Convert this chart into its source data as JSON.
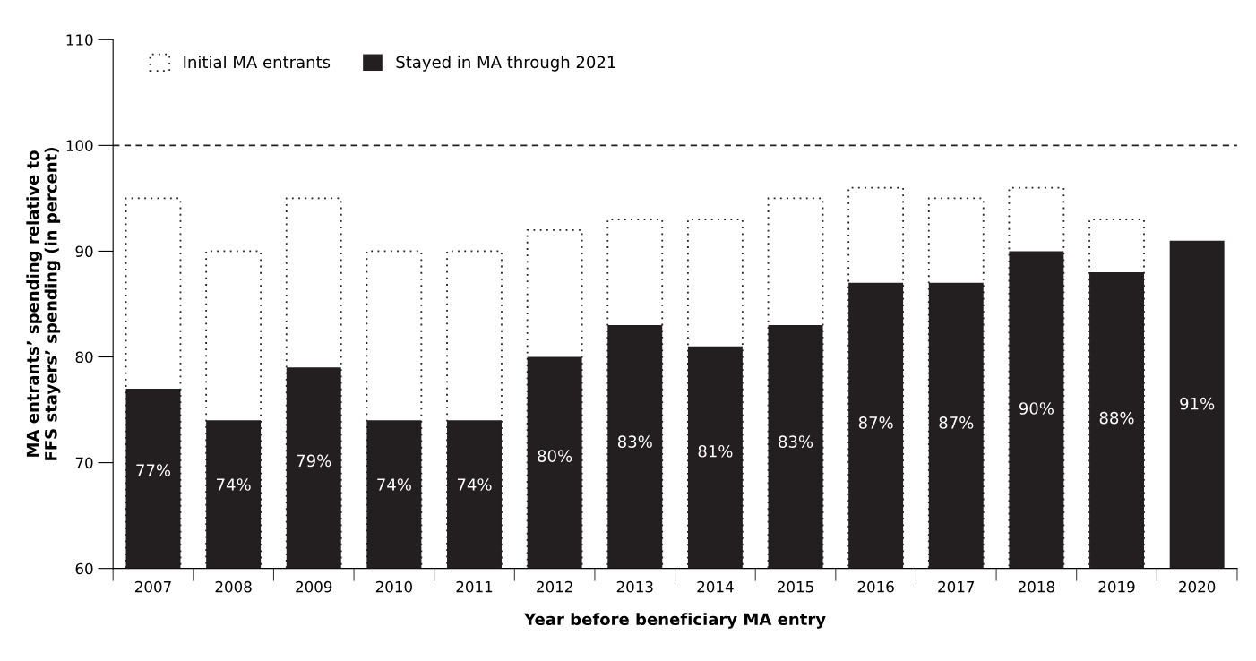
{
  "chart_data": {
    "type": "bar",
    "xlabel": "Year before beneficiary MA entry",
    "ylabel": "MA entrants’ spending relative to\nFFS stayers’ spending (in percent)",
    "categories": [
      "2007",
      "2008",
      "2009",
      "2010",
      "2011",
      "2012",
      "2013",
      "2014",
      "2015",
      "2016",
      "2017",
      "2018",
      "2019",
      "2020"
    ],
    "series": [
      {
        "name": "Stayed in MA through 2021",
        "color": "#231f20",
        "values": [
          77,
          74,
          79,
          74,
          74,
          80,
          83,
          81,
          83,
          87,
          87,
          90,
          88,
          91
        ],
        "value_labels": [
          "77%",
          "74%",
          "79%",
          "74%",
          "74%",
          "80%",
          "83%",
          "81%",
          "83%",
          "87%",
          "87%",
          "90%",
          "88%",
          "91%"
        ]
      },
      {
        "name": "Initial MA entrants",
        "color": "#231f20",
        "line_style": "dotted",
        "values": [
          95,
          90,
          95,
          90,
          90,
          92,
          93,
          93,
          95,
          96,
          95,
          96,
          93,
          null
        ]
      }
    ],
    "ylim": [
      60,
      110
    ],
    "yticks": [
      60,
      70,
      80,
      90,
      100,
      110
    ],
    "ref_lines": [
      {
        "axis": "y",
        "value": 100,
        "color": "#231f20",
        "line_style": "dashed"
      }
    ],
    "legend": "top left",
    "grid": false
  }
}
